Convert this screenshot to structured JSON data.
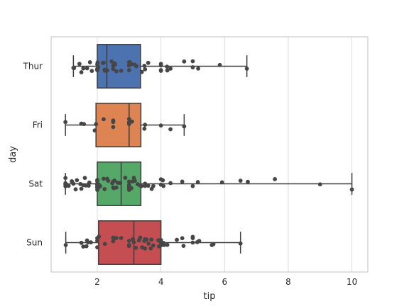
{
  "chart_data": {
    "type": "box",
    "orientation": "horizontal",
    "xlabel": "tip",
    "ylabel": "day",
    "xlim": [
      0.55,
      10.5
    ],
    "xticks": [
      2,
      4,
      6,
      8,
      10
    ],
    "grid": "vertical",
    "categories": [
      "Thur",
      "Fri",
      "Sat",
      "Sun"
    ],
    "boxes": [
      {
        "name": "Thur",
        "color": "#4c72b0",
        "whisker_low": 1.25,
        "q1": 2.0,
        "median": 2.3,
        "q3": 3.36,
        "whisker_high": 6.7
      },
      {
        "name": "Fri",
        "color": "#dd8452",
        "whisker_low": 1.0,
        "q1": 1.96,
        "median": 3.0,
        "q3": 3.37,
        "whisker_high": 4.73
      },
      {
        "name": "Sat",
        "color": "#55a868",
        "whisker_low": 1.0,
        "q1": 2.0,
        "median": 2.75,
        "q3": 3.37,
        "whisker_high": 10.0
      },
      {
        "name": "Sun",
        "color": "#c44e52",
        "whisker_low": 1.01,
        "q1": 2.04,
        "median": 3.15,
        "q3": 4.0,
        "whisker_high": 6.5
      }
    ],
    "points": {
      "Thur": [
        1.27,
        1.44,
        1.25,
        1.5,
        1.56,
        1.68,
        1.77,
        1.83,
        2.0,
        2.0,
        2.0,
        2.0,
        2.0,
        2.01,
        2.03,
        2.18,
        2.2,
        2.23,
        2.24,
        2.31,
        2.45,
        2.5,
        2.5,
        2.52,
        2.55,
        2.56,
        2.6,
        2.75,
        3.0,
        3.0,
        3.0,
        3.0,
        3.02,
        3.08,
        3.18,
        3.23,
        3.4,
        3.48,
        3.5,
        3.6,
        4.0,
        4.0,
        4.0,
        4.0,
        4.19,
        4.2,
        4.3,
        4.73,
        5.0,
        5.0,
        5.17,
        5.85,
        6.7
      ],
      "Fri": [
        1.0,
        1.5,
        1.5,
        1.58,
        1.92,
        1.96,
        2.2,
        2.5,
        2.5,
        2.5,
        3.0,
        3.0,
        3.0,
        3.0,
        3.09,
        3.48,
        3.5,
        4.0,
        4.3,
        4.73
      ],
      "Sat": [
        1.0,
        1.0,
        1.0,
        1.0,
        1.01,
        1.1,
        1.2,
        1.25,
        1.32,
        1.36,
        1.47,
        1.5,
        1.56,
        1.61,
        1.64,
        1.73,
        1.75,
        2.0,
        2.0,
        2.0,
        2.0,
        2.0,
        2.0,
        2.0,
        2.0,
        2.01,
        2.02,
        2.05,
        2.09,
        2.2,
        2.23,
        2.31,
        2.34,
        2.47,
        2.5,
        2.5,
        2.52,
        2.54,
        2.6,
        2.64,
        2.72,
        2.88,
        3.0,
        3.0,
        3.0,
        3.0,
        3.0,
        3.0,
        3.07,
        3.11,
        3.15,
        3.18,
        3.27,
        3.35,
        3.39,
        3.5,
        3.5,
        3.6,
        3.71,
        3.76,
        4.0,
        4.0,
        4.06,
        4.08,
        4.3,
        4.67,
        5.0,
        5.16,
        5.92,
        6.5,
        6.73,
        7.58,
        9.0,
        10.0
      ],
      "Sun": [
        1.01,
        1.5,
        1.56,
        1.66,
        1.68,
        1.71,
        1.8,
        2.0,
        2.0,
        2.0,
        2.05,
        2.24,
        2.5,
        2.5,
        2.54,
        2.6,
        2.75,
        3.0,
        3.0,
        3.0,
        3.0,
        3.12,
        3.15,
        3.21,
        3.31,
        3.35,
        3.41,
        3.48,
        3.5,
        3.5,
        3.55,
        3.61,
        3.68,
        3.7,
        3.76,
        3.92,
        3.94,
        4.0,
        4.0,
        4.0,
        4.08,
        4.1,
        4.2,
        4.5,
        4.67,
        4.71,
        5.0,
        5.0,
        5.0,
        5.14,
        5.2,
        5.6,
        5.65,
        6.5
      ]
    }
  }
}
